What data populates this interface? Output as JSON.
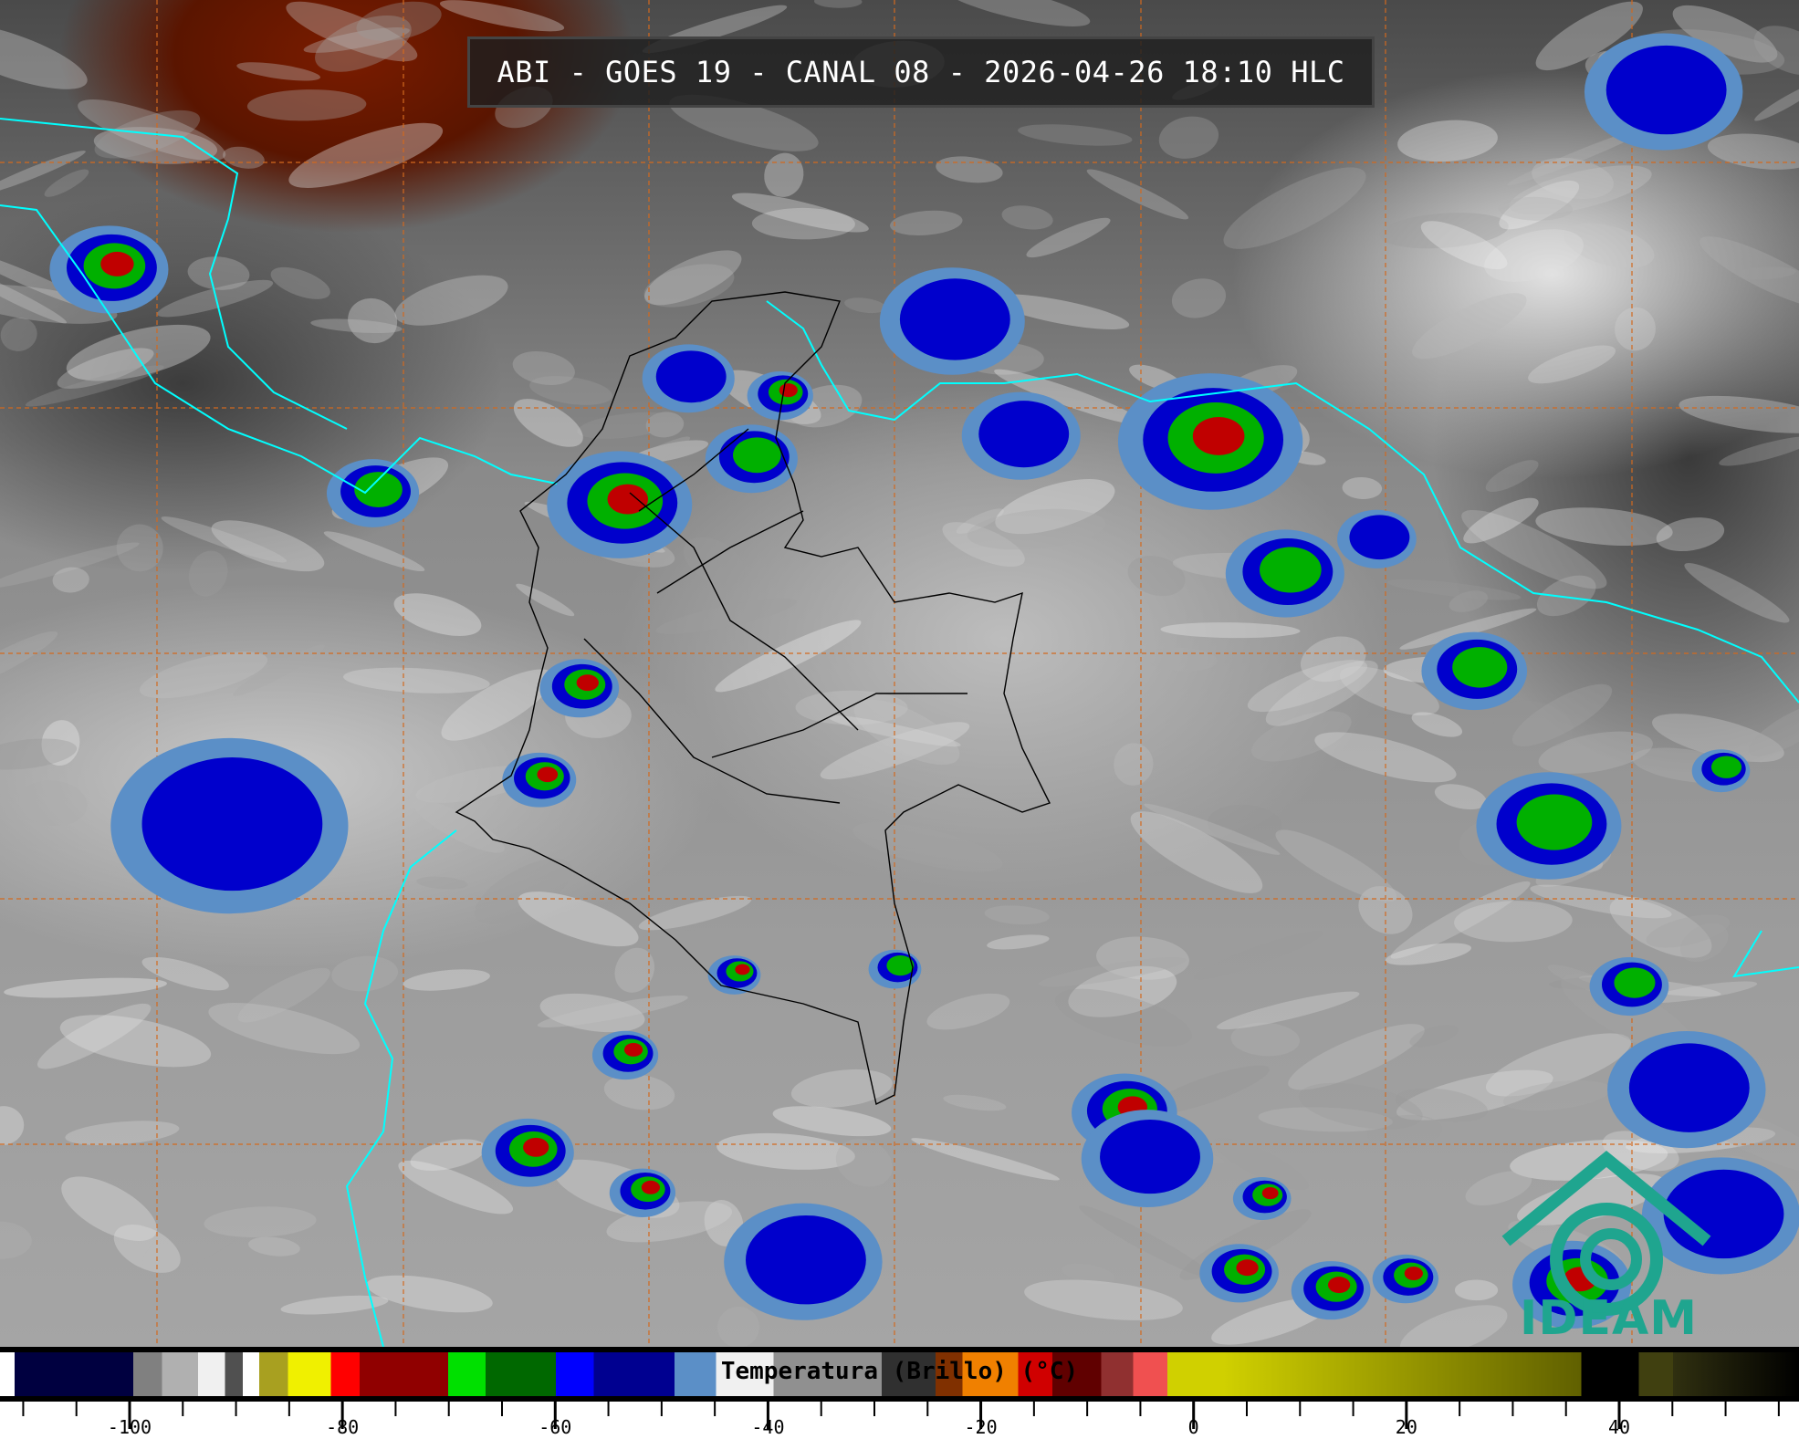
{
  "title": "ABI - GOES 19 - CANAL 08 - 2026-04-26 18:10 HLC",
  "colorbar": {
    "label": "Temperatura (Brillo) (°C)",
    "range": [
      -112,
      56
    ],
    "tick_labels": [
      "-100",
      "-80",
      "-60",
      "-40",
      "-20",
      "0",
      "20",
      "40"
    ],
    "tick_values": [
      -100,
      -80,
      -60,
      -40,
      -20,
      0,
      20,
      40
    ]
  },
  "logo": {
    "text": "IDEAM",
    "color": "#1fa58f"
  },
  "colors": {
    "coastline": "#00ffff",
    "borders": "#000000",
    "graticule": "#d2691e",
    "convection_levels": [
      "#5b8fc7",
      "#0000cc",
      "#000080",
      "#00b000",
      "#c00000"
    ]
  }
}
